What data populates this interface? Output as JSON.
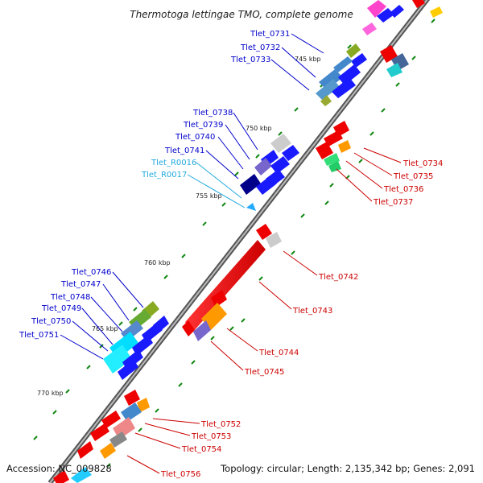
{
  "title": "Thermotoga lettingae TMO, complete genome",
  "footer": {
    "accession": "Accession: NC_009828",
    "topology": "Topology: circular; Length: 2,135,342 bp; Genes: 2,091"
  },
  "ticks": [
    "745 kbp",
    "750 kbp",
    "755 kbp",
    "760 kbp",
    "765 kbp",
    "770 kbp"
  ],
  "genes_left": [
    {
      "id": "Tlet_0731"
    },
    {
      "id": "Tlet_0732"
    },
    {
      "id": "Tlet_0733"
    },
    {
      "id": "Tlet_0738"
    },
    {
      "id": "Tlet_0739"
    },
    {
      "id": "Tlet_0740"
    },
    {
      "id": "Tlet_0741"
    },
    {
      "id": "Tlet_R0016"
    },
    {
      "id": "Tlet_R0017"
    },
    {
      "id": "Tlet_0746"
    },
    {
      "id": "Tlet_0747"
    },
    {
      "id": "Tlet_0748"
    },
    {
      "id": "Tlet_0749"
    },
    {
      "id": "Tlet_0750"
    },
    {
      "id": "Tlet_0751"
    }
  ],
  "genes_right": [
    {
      "id": "Tlet_0734"
    },
    {
      "id": "Tlet_0735"
    },
    {
      "id": "Tlet_0736"
    },
    {
      "id": "Tlet_0737"
    },
    {
      "id": "Tlet_0742"
    },
    {
      "id": "Tlet_0743"
    },
    {
      "id": "Tlet_0744"
    },
    {
      "id": "Tlet_0745"
    },
    {
      "id": "Tlet_0752"
    },
    {
      "id": "Tlet_0753"
    },
    {
      "id": "Tlet_0754"
    },
    {
      "id": "Tlet_0756"
    }
  ],
  "colors": {
    "forward": "#0000ee",
    "reverse": "#ee0000",
    "rna": "#22aadd",
    "backbone": "#888888",
    "gc_dots": "#118811"
  }
}
